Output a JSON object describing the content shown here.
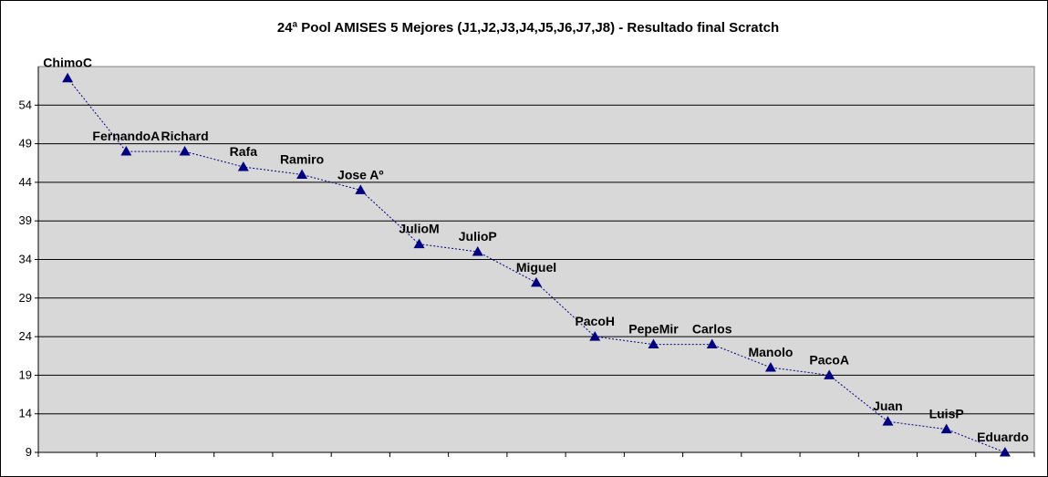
{
  "chart_data": {
    "type": "line",
    "title": "24ª Pool AMISES 5 Mejores (J1,J2,J3,J4,J5,J6,J7,J8) - Resultado final Scratch",
    "xlabel": "",
    "ylabel": "",
    "ylim": [
      9,
      59
    ],
    "yticks": [
      "9",
      "14",
      "19",
      "24",
      "29",
      "34",
      "39",
      "44",
      "49",
      "54"
    ],
    "grid": true,
    "legend": "none",
    "series": [
      {
        "points": [
          {
            "label": "ChimoC",
            "value": 57.5
          },
          {
            "label": "FernandoA",
            "value": 48
          },
          {
            "label": "Richard",
            "value": 48
          },
          {
            "label": "Rafa",
            "value": 46
          },
          {
            "label": "Ramiro",
            "value": 45
          },
          {
            "label": "Jose Aº",
            "value": 43
          },
          {
            "label": "JulioM",
            "value": 36
          },
          {
            "label": "JulioP",
            "value": 35
          },
          {
            "label": "Miguel",
            "value": 31
          },
          {
            "label": "PacoH",
            "value": 24
          },
          {
            "label": "PepeMir",
            "value": 23
          },
          {
            "label": "Carlos",
            "value": 23
          },
          {
            "label": "Manolo",
            "value": 20
          },
          {
            "label": "PacoA",
            "value": 19
          },
          {
            "label": "Juan",
            "value": 13
          },
          {
            "label": "LuisP",
            "value": 12
          },
          {
            "label": "Eduardo",
            "value": 9
          }
        ]
      }
    ],
    "colors": {
      "plot_background": "#d8d8d8",
      "line": "#000080",
      "marker": "#000080",
      "grid": "#000000"
    }
  }
}
